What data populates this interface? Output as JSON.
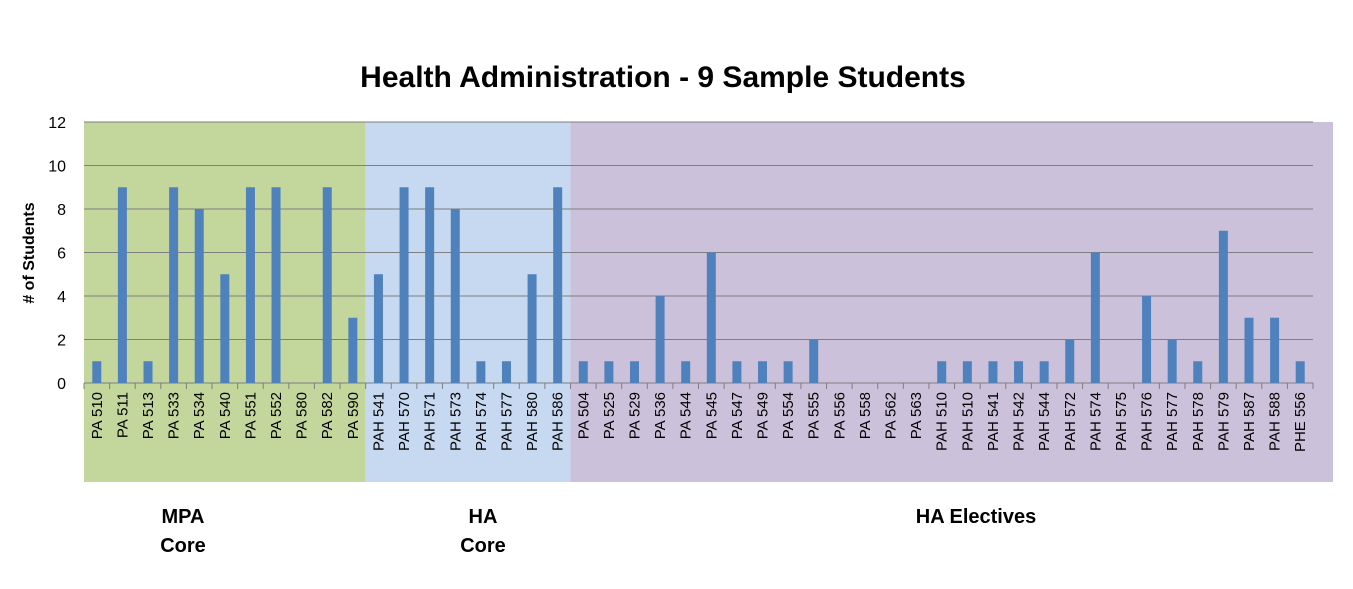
{
  "chart_data": {
    "type": "bar",
    "title": "Health Administration - 9 Sample Students",
    "ylabel": "# of Students",
    "xlabel": "",
    "ylim": [
      0,
      12
    ],
    "yticks": [
      0,
      2,
      4,
      6,
      8,
      10,
      12
    ],
    "grid": true,
    "categories": [
      "PA 510",
      "PA 511",
      "PA 513",
      "PA 533",
      "PA 534",
      "PA 540",
      "PA 551",
      "PA 552",
      "PA 580",
      "PA 582",
      "PA 590",
      "PAH 541",
      "PAH 570",
      "PAH 571",
      "PAH 573",
      "PAH 574",
      "PAH 577",
      "PAH 580",
      "PAH 586",
      "PA 504",
      "PA 525",
      "PA 529",
      "PA 536",
      "PA 544",
      "PA 545",
      "PA 547",
      "PA 549",
      "PA 554",
      "PA 555",
      "PA 556",
      "PA 558",
      "PA 562",
      "PA 563",
      "PAH 510",
      "PAH 510",
      "PAH 541",
      "PAH 542",
      "PAH 544",
      "PAH 572",
      "PAH 574",
      "PAH 575",
      "PAH 576",
      "PAH 577",
      "PAH 578",
      "PAH 579",
      "PAH 587",
      "PAH 588",
      "PHE 556"
    ],
    "values": [
      1,
      9,
      1,
      9,
      8,
      5,
      9,
      9,
      0,
      9,
      3,
      5,
      9,
      9,
      8,
      1,
      1,
      5,
      9,
      1,
      1,
      1,
      4,
      1,
      6,
      1,
      1,
      1,
      2,
      0,
      0,
      0,
      0,
      1,
      1,
      1,
      1,
      1,
      2,
      6,
      0,
      4,
      2,
      1,
      7,
      3,
      3,
      1
    ],
    "groups": [
      {
        "label_lines": [
          "MPA",
          "Core"
        ],
        "start": 0,
        "end": 10,
        "color": "#c3d69b"
      },
      {
        "label_lines": [
          "HA",
          "Core"
        ],
        "start": 11,
        "end": 18,
        "color": "#c6d9f1"
      },
      {
        "label_lines": [
          "HA Electives"
        ],
        "start": 19,
        "end": 47,
        "color": "#ccc1da"
      }
    ],
    "bar_color": "#4f81bd"
  }
}
